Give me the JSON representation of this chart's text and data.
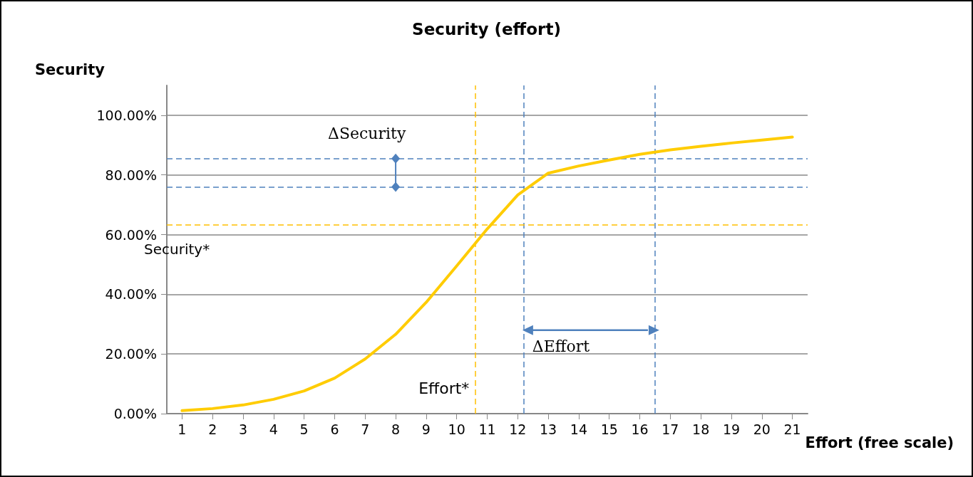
{
  "chart_data": {
    "type": "line",
    "title": "Security (effort)",
    "xlabel": "Effort (free scale)",
    "ylabel": "Security",
    "x": [
      1,
      2,
      3,
      4,
      5,
      6,
      7,
      8,
      9,
      10,
      11,
      12,
      13,
      14,
      15,
      16,
      17,
      18,
      19,
      20,
      21
    ],
    "xlim": [
      0.5,
      21.5
    ],
    "xticks": [
      1,
      2,
      3,
      4,
      5,
      6,
      7,
      8,
      9,
      10,
      11,
      12,
      13,
      14,
      15,
      16,
      17,
      18,
      19,
      20,
      21
    ],
    "ylim": [
      0,
      110
    ],
    "yticks": [
      {
        "value": 0,
        "label": "0.00%"
      },
      {
        "value": 20,
        "label": "20.00%"
      },
      {
        "value": 40,
        "label": "40.00%"
      },
      {
        "value": 60,
        "label": "60.00%"
      },
      {
        "value": 80,
        "label": "80.00%"
      },
      {
        "value": 100,
        "label": "100.00%"
      }
    ],
    "series": [
      {
        "color": "#ffcc00",
        "values": [
          1.0,
          1.7,
          2.9,
          4.8,
          7.6,
          11.9,
          18.3,
          26.6,
          37.3,
          49.5,
          61.9,
          73.3,
          80.6,
          83.0,
          85.0,
          86.9,
          88.4,
          89.6,
          90.7,
          91.7,
          92.7
        ]
      }
    ],
    "ref_lines": [
      {
        "axis": "y",
        "value": 85.5,
        "color": "#4f81bd",
        "line_style": "dashed"
      },
      {
        "axis": "y",
        "value": 76,
        "color": "#4f81bd",
        "line_style": "dashed"
      },
      {
        "axis": "x",
        "value": 12.2,
        "color": "#4f81bd",
        "line_style": "dashed"
      },
      {
        "axis": "x",
        "value": 16.5,
        "color": "#4f81bd",
        "line_style": "dashed"
      },
      {
        "axis": "y",
        "value": 63.3,
        "label": "Security*",
        "color": "#ffc000",
        "line_style": "dashed"
      },
      {
        "axis": "x",
        "value": 10.6,
        "label": "Effort*",
        "color": "#ffc000",
        "line_style": "dashed"
      }
    ],
    "annotations": [
      {
        "text": "ΔSecurity",
        "x": 8,
        "y": 85.5
      },
      {
        "text": "ΔEffort",
        "x": 12.2,
        "y": 28
      }
    ],
    "grid": "y",
    "marker": "none",
    "line_style": "solid"
  }
}
